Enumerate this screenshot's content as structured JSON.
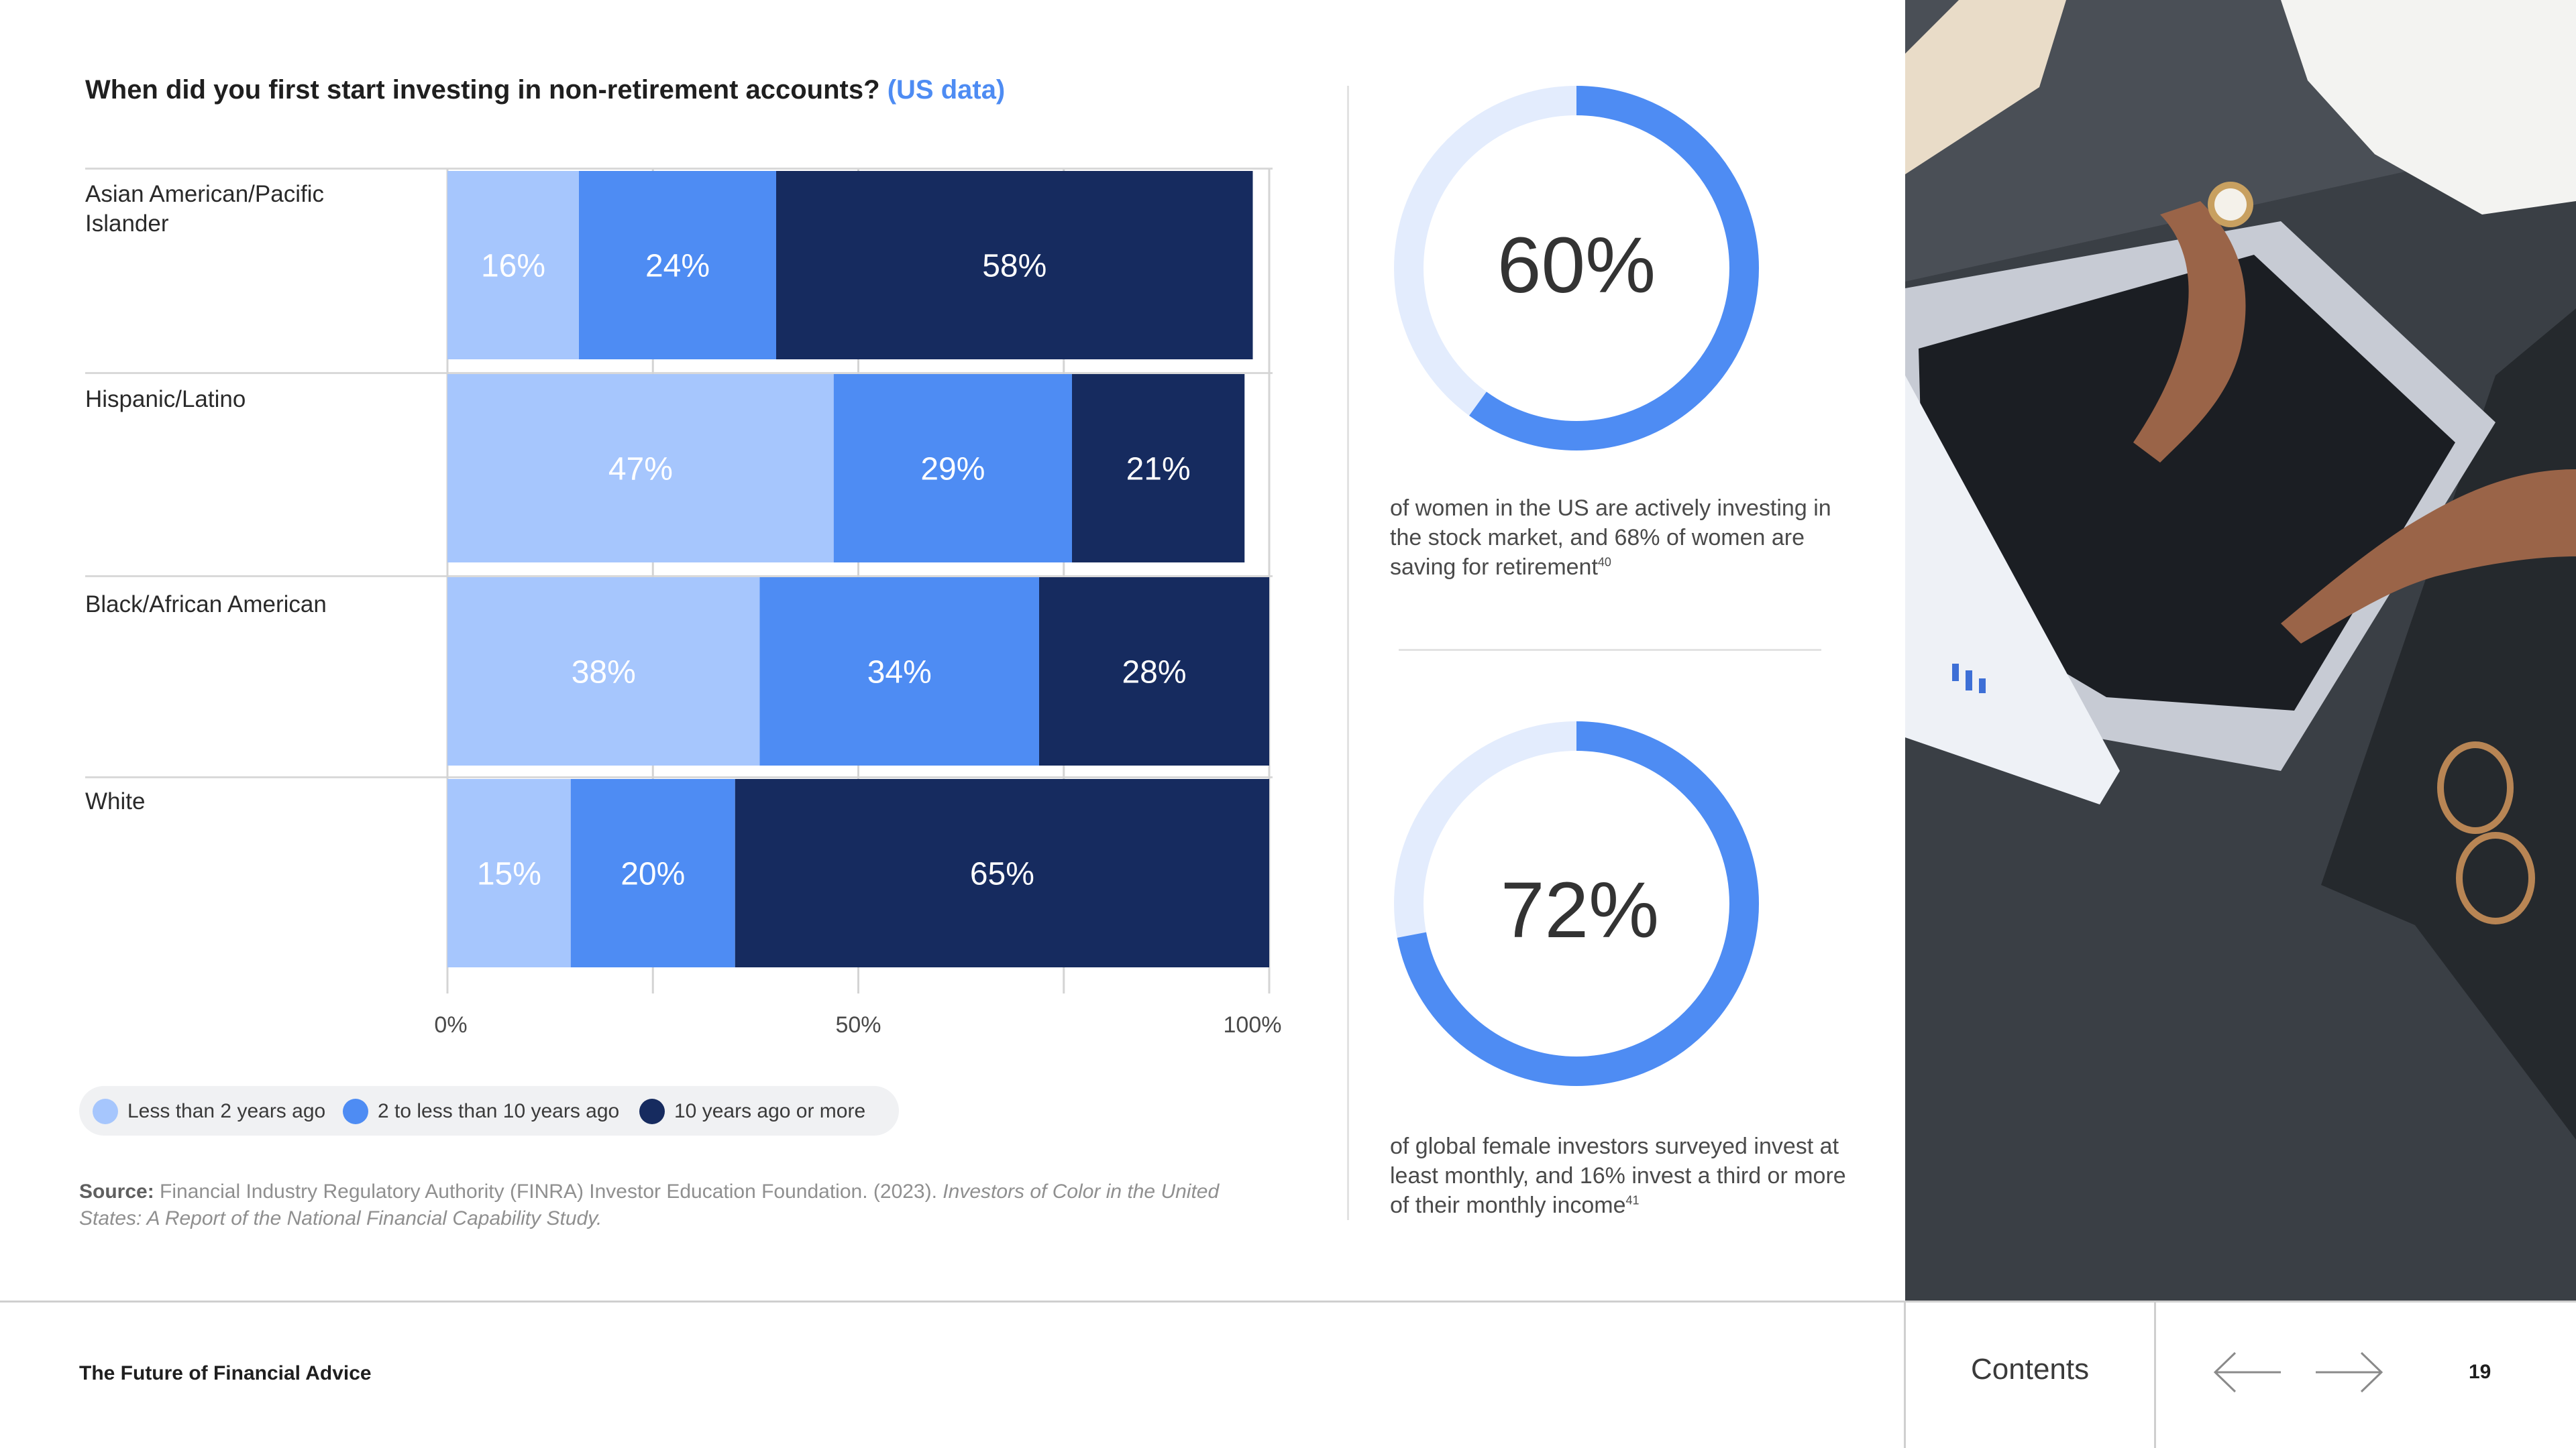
{
  "title": {
    "main": "When did you first start investing in non-retirement accounts?",
    "highlight": "(US data)"
  },
  "colors": {
    "light": "#a6c6fd",
    "mid": "#4e8cf3",
    "dark": "#162b5f",
    "ring_track": "#e3ecfd",
    "ring_fill": "#4e8cf3"
  },
  "chart_data": {
    "type": "bar",
    "orientation": "horizontal",
    "stacked": true,
    "categories": [
      "Asian American/Pacific Islander",
      "Hispanic/Latino",
      "Black/African American",
      "White"
    ],
    "series": [
      {
        "name": "Less than 2 years ago",
        "values": [
          16,
          47,
          38,
          15
        ],
        "labels": [
          "16%",
          "47%",
          "38%",
          "15%"
        ],
        "color": "#a6c6fd"
      },
      {
        "name": "2 to less than 10 years ago",
        "values": [
          24,
          29,
          34,
          20
        ],
        "labels": [
          "24%",
          "29%",
          "34%",
          "20%"
        ],
        "color": "#4e8cf3"
      },
      {
        "name": "10 years ago or more",
        "values": [
          58,
          21,
          28,
          65
        ],
        "labels": [
          "58%",
          "21%",
          "28%",
          "65%"
        ],
        "color": "#162b5f"
      }
    ],
    "x_ticks": [
      "0%",
      "50%",
      "100%"
    ],
    "x_tick_values": [
      0,
      50,
      100
    ],
    "xlim": [
      0,
      100
    ],
    "grid": true,
    "legend_position": "bottom-left"
  },
  "legend": [
    "Less than 2 years ago",
    "2 to less than 10 years ago",
    "10 years ago or more"
  ],
  "source": {
    "label": "Source:",
    "text": "Financial Industry Regulatory Authority (FINRA) Investor Education Foundation. (2023).",
    "italic": "Investors of Color in the United States: A Report of the National Financial Capability Study."
  },
  "stats": [
    {
      "value": "60%",
      "fraction": 0.6,
      "text": "of women in the US are actively investing in the stock market, and 68% of women are saving for retirement",
      "footnote": "40"
    },
    {
      "value": "72%",
      "fraction": 0.72,
      "text": "of global female investors surveyed invest at least monthly, and 16% invest a third or more of their monthly income",
      "footnote": "41"
    }
  ],
  "footer": {
    "title": "The Future of Financial Advice",
    "contents": "Contents",
    "page": "19"
  }
}
